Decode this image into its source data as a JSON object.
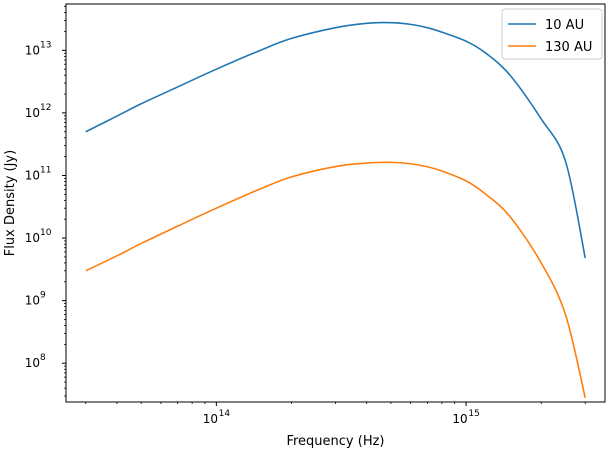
{
  "chart_data": {
    "type": "line",
    "title": "",
    "xlabel": "Frequency (Hz)",
    "ylabel": "Flux Density (Jy)",
    "xscale": "log",
    "yscale": "log",
    "xlim": [
      25000000000000.0,
      3600000000000000.0
    ],
    "ylim": [
      24000000.0,
      55000000000000.0
    ],
    "x_ticks": [
      {
        "value": 100000000000000.0,
        "base": "10",
        "exp": "14"
      },
      {
        "value": 1000000000000000.0,
        "base": "10",
        "exp": "15"
      }
    ],
    "y_ticks": [
      {
        "value": 100000000.0,
        "base": "10",
        "exp": "8"
      },
      {
        "value": 1000000000.0,
        "base": "10",
        "exp": "9"
      },
      {
        "value": 10000000000.0,
        "base": "10",
        "exp": "10"
      },
      {
        "value": 100000000000.0,
        "base": "10",
        "exp": "11"
      },
      {
        "value": 1000000000000.0,
        "base": "10",
        "exp": "12"
      },
      {
        "value": 10000000000000.0,
        "base": "10",
        "exp": "13"
      }
    ],
    "grid": false,
    "legend_position": "top-right",
    "series": [
      {
        "name": "10 AU",
        "color": "#1f77b4",
        "x": [
          30000000000000.0,
          40000000000000.0,
          50000000000000.0,
          70000000000000.0,
          100000000000000.0,
          150000000000000.0,
          200000000000000.0,
          300000000000000.0,
          400000000000000.0,
          500000000000000.0,
          600000000000000.0,
          700000000000000.0,
          800000000000000.0,
          1000000000000000.0,
          1200000000000000.0,
          1500000000000000.0,
          2000000000000000.0,
          2500000000000000.0,
          3000000000000000.0
        ],
        "y": [
          500000000000.0,
          890000000000.0,
          1400000000000.0,
          2600000000000.0,
          5000000000000.0,
          10000000000000.0,
          15500000000000.0,
          23000000000000.0,
          27000000000000.0,
          27700000000000.0,
          26000000000000.0,
          23000000000000.0,
          19500000000000.0,
          14000000000000.0,
          9000000000000.0,
          4000000000000.0,
          800000000000.0,
          170000000000.0,
          4800000000.0
        ]
      },
      {
        "name": "130 AU",
        "color": "#ff7f0e",
        "x": [
          30000000000000.0,
          40000000000000.0,
          50000000000000.0,
          70000000000000.0,
          100000000000000.0,
          150000000000000.0,
          200000000000000.0,
          300000000000000.0,
          400000000000000.0,
          500000000000000.0,
          600000000000000.0,
          700000000000000.0,
          800000000000000.0,
          1000000000000000.0,
          1200000000000000.0,
          1500000000000000.0,
          2000000000000000.0,
          2500000000000000.0,
          3000000000000000.0
        ],
        "y": [
          3000000000.0,
          5200000000.0,
          8200000000.0,
          15500000000.0,
          30000000000.0,
          61000000000.0,
          95000000000.0,
          139000000000.0,
          158000000000.0,
          162000000000.0,
          154000000000.0,
          138000000000.0,
          118000000000.0,
          82000000000.0,
          50000000000.0,
          22000000000.0,
          4000000000.0,
          600000000.0,
          28000000.0
        ]
      }
    ]
  }
}
